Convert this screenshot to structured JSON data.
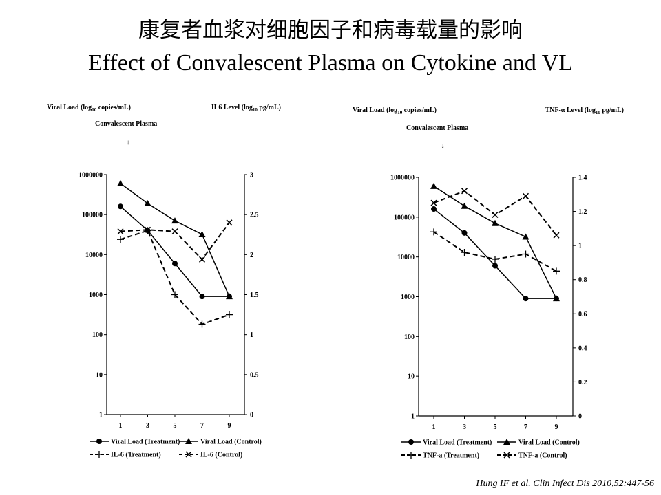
{
  "title_cn": "康复者血浆对细胞因子和病毒载量的影响",
  "title_en": "Effect of Convalescent Plasma on Cytokine and VL",
  "citation": "Hung IF et al. Clin Infect Dis 2010,52:447-56",
  "chart_data": [
    {
      "type": "line",
      "left_axis_label": "Viral Load (log10 copies/mL)",
      "right_axis_label": "IL6 Level (log10 pg/mL)",
      "annotation": "Convalescent Plasma",
      "annotation_arrow": "↓",
      "annotation_at_x": 1,
      "x": [
        1,
        3,
        5,
        7,
        9
      ],
      "x_ticks": [
        "1",
        "3",
        "5",
        "7",
        "9"
      ],
      "left_scale": "log",
      "left_ylim": [
        1,
        1000000
      ],
      "left_ticks": [
        "1",
        "10",
        "100",
        "1000",
        "10000",
        "100000",
        "1000000"
      ],
      "right_ylim": [
        0,
        3
      ],
      "right_ticks": [
        "0",
        "0.5",
        "1",
        "1.5",
        "2",
        "2.5",
        "3"
      ],
      "grid": false,
      "legend_position": "bottom",
      "series": [
        {
          "name": "Viral Load (Treatment)",
          "axis": "left",
          "marker": "circle",
          "dash": "solid",
          "values": [
            160000,
            40000,
            6000,
            900,
            900
          ]
        },
        {
          "name": "Viral Load (Control)",
          "axis": "left",
          "marker": "triangle",
          "dash": "solid",
          "values": [
            600000,
            190000,
            70000,
            32000,
            900
          ]
        },
        {
          "name": "IL-6 (Treatment)",
          "axis": "right",
          "marker": "plus",
          "dash": "dashed",
          "values": [
            2.19,
            2.3,
            1.5,
            1.13,
            1.25
          ]
        },
        {
          "name": "IL-6 (Control)",
          "axis": "right",
          "marker": "cross",
          "dash": "dashed",
          "values": [
            2.29,
            2.31,
            2.29,
            1.94,
            2.4
          ]
        }
      ]
    },
    {
      "type": "line",
      "left_axis_label": "Viral Load (log10 copies/mL)",
      "right_axis_label": "TNF-α Level (log10 pg/mL)",
      "annotation": "Convalescent Plasma",
      "annotation_arrow": "↓",
      "annotation_at_x": 1,
      "x": [
        1,
        3,
        5,
        7,
        9
      ],
      "x_ticks": [
        "1",
        "3",
        "5",
        "7",
        "9"
      ],
      "left_scale": "log",
      "left_ylim": [
        1,
        1000000
      ],
      "left_ticks": [
        "1",
        "10",
        "100",
        "1000",
        "10000",
        "100000",
        "1000000"
      ],
      "right_ylim": [
        0,
        1.4
      ],
      "right_ticks": [
        "0",
        "0.2",
        "0.4",
        "0.6",
        "0.8",
        "1",
        "1.2",
        "1.4"
      ],
      "grid": false,
      "legend_position": "bottom",
      "series": [
        {
          "name": "Viral Load (Treatment)",
          "axis": "left",
          "marker": "circle",
          "dash": "solid",
          "values": [
            160000,
            40000,
            6000,
            900,
            900
          ]
        },
        {
          "name": "Viral Load (Control)",
          "axis": "left",
          "marker": "triangle",
          "dash": "solid",
          "values": [
            600000,
            190000,
            70000,
            32000,
            900
          ]
        },
        {
          "name": "TNF-a (Treatment)",
          "axis": "right",
          "marker": "plus",
          "dash": "dashed",
          "values": [
            1.08,
            0.96,
            0.92,
            0.95,
            0.85
          ]
        },
        {
          "name": "TNF-a (Control)",
          "axis": "right",
          "marker": "cross",
          "dash": "dashed",
          "values": [
            1.25,
            1.32,
            1.18,
            1.29,
            1.06
          ]
        }
      ]
    }
  ]
}
